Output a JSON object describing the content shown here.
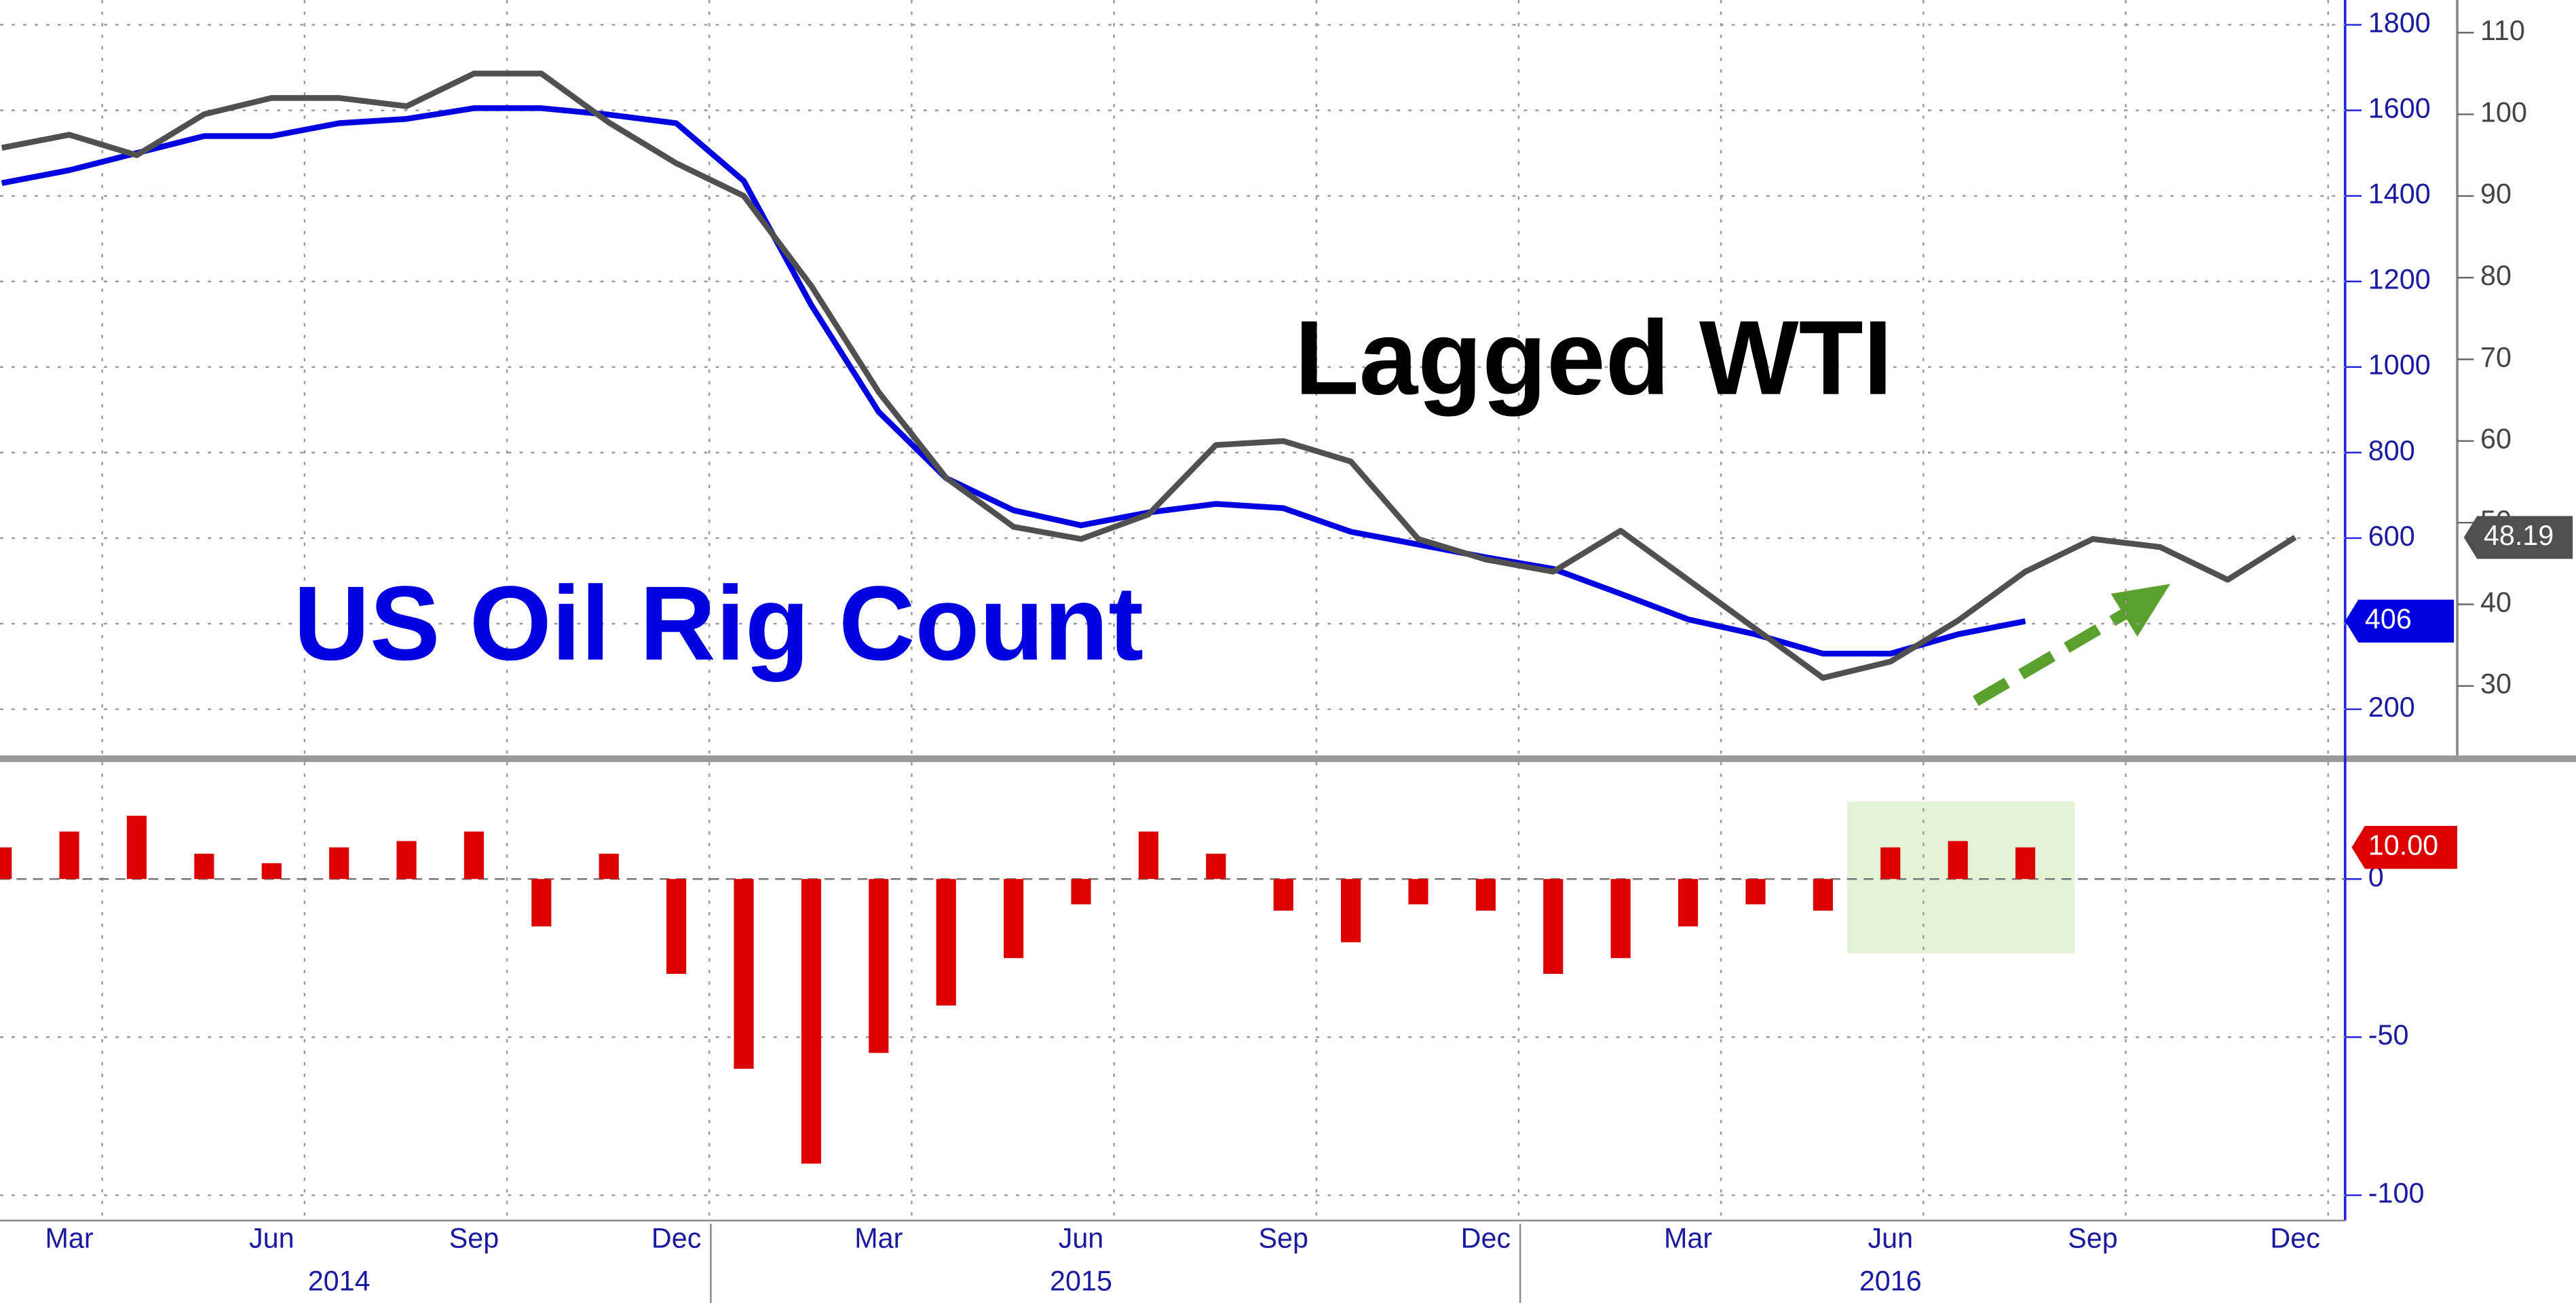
{
  "chart_data": [
    {
      "type": "line",
      "x": [
        "2014-02",
        "2014-03",
        "2014-04",
        "2014-05",
        "2014-06",
        "2014-07",
        "2014-08",
        "2014-09",
        "2014-10",
        "2014-11",
        "2014-12",
        "2015-01",
        "2015-02",
        "2015-03",
        "2015-04",
        "2015-05",
        "2015-06",
        "2015-07",
        "2015-08",
        "2015-09",
        "2015-10",
        "2015-11",
        "2015-12",
        "2016-01",
        "2016-02",
        "2016-03",
        "2016-04",
        "2016-05",
        "2016-06",
        "2016-07",
        "2016-08",
        "2016-09",
        "2016-10",
        "2016-11",
        "2016-12"
      ],
      "series": [
        {
          "name": "US Oil Rig Count",
          "color": "#0000e0",
          "values": [
            1430,
            1460,
            1500,
            1540,
            1540,
            1570,
            1580,
            1605,
            1605,
            1590,
            1570,
            1435,
            1145,
            895,
            740,
            665,
            630,
            660,
            680,
            670,
            615,
            585,
            555,
            528,
            470,
            410,
            375,
            330,
            330,
            375,
            406,
            null,
            null,
            null,
            null
          ]
        },
        {
          "name": "Lagged WTI",
          "color": "#505050",
          "axis": "y2",
          "values": [
            95.9,
            97.5,
            95,
            100,
            102,
            102,
            101,
            105,
            105,
            99,
            94,
            90,
            79,
            66,
            55.5,
            49.5,
            48,
            51,
            59.5,
            60,
            57.5,
            48,
            45.5,
            44,
            49,
            43,
            37,
            31,
            33,
            38,
            44,
            48,
            47,
            43,
            48.19
          ]
        }
      ],
      "ylim": [
        92,
        1858
      ],
      "yticks": [
        200,
        400,
        600,
        800,
        1000,
        1200,
        1400,
        1600,
        1800
      ],
      "y2lim": [
        21.5,
        114
      ],
      "y2ticks": [
        30,
        40,
        50,
        60,
        70,
        80,
        90,
        100,
        110
      ],
      "grid": true
    },
    {
      "type": "bar",
      "color": "#dd0000",
      "x": [
        "2014-02",
        "2014-03",
        "2014-04",
        "2014-05",
        "2014-06",
        "2014-07",
        "2014-08",
        "2014-09",
        "2014-10",
        "2014-11",
        "2014-12",
        "2015-01",
        "2015-02",
        "2015-03",
        "2015-04",
        "2015-05",
        "2015-06",
        "2015-07",
        "2015-08",
        "2015-09",
        "2015-10",
        "2015-11",
        "2015-12",
        "2016-01",
        "2016-02",
        "2016-03",
        "2016-04",
        "2016-05",
        "2016-06",
        "2016-07",
        "2016-08",
        "2016-09",
        "2016-10",
        "2016-11",
        "2016-12"
      ],
      "values": [
        10,
        15,
        20,
        8,
        5,
        10,
        12,
        15,
        -15,
        8,
        -30,
        -60,
        -90,
        -55,
        -40,
        -25,
        -8,
        15,
        8,
        -10,
        -20,
        -8,
        -10,
        -30,
        -25,
        -15,
        -8,
        -10,
        10,
        12,
        10,
        null,
        null,
        null,
        null
      ],
      "value_labels": [
        null,
        null,
        null,
        null,
        null,
        null,
        null,
        null,
        null,
        null,
        null,
        null,
        null,
        null,
        null,
        null,
        null,
        null,
        null,
        null,
        null,
        null,
        null,
        null,
        null,
        null,
        null,
        null,
        null,
        null,
        "10.00",
        null,
        null,
        null,
        null
      ],
      "ylim": [
        -108,
        37
      ],
      "yticks": [
        -100,
        -50,
        0
      ],
      "xticks": [
        {
          "value": "2014-03",
          "label": "Mar"
        },
        {
          "value": "2014-06",
          "label": "Jun"
        },
        {
          "value": "2014-09",
          "label": "Sep"
        },
        {
          "value": "2014-12",
          "label": "Dec"
        },
        {
          "value": "2015-03",
          "label": "Mar"
        },
        {
          "value": "2015-06",
          "label": "Jun"
        },
        {
          "value": "2015-09",
          "label": "Sep"
        },
        {
          "value": "2015-12",
          "label": "Dec"
        },
        {
          "value": "2016-03",
          "label": "Mar"
        },
        {
          "value": "2016-06",
          "label": "Jun"
        },
        {
          "value": "2016-09",
          "label": "Sep"
        },
        {
          "value": "2016-12",
          "label": "Dec"
        }
      ],
      "year_ticks": [
        {
          "value": "2014-07",
          "label": "2014"
        },
        {
          "value": "2015-06",
          "label": "2015"
        },
        {
          "value": "2016-06",
          "label": "2016"
        }
      ],
      "grid": true
    }
  ]
}
